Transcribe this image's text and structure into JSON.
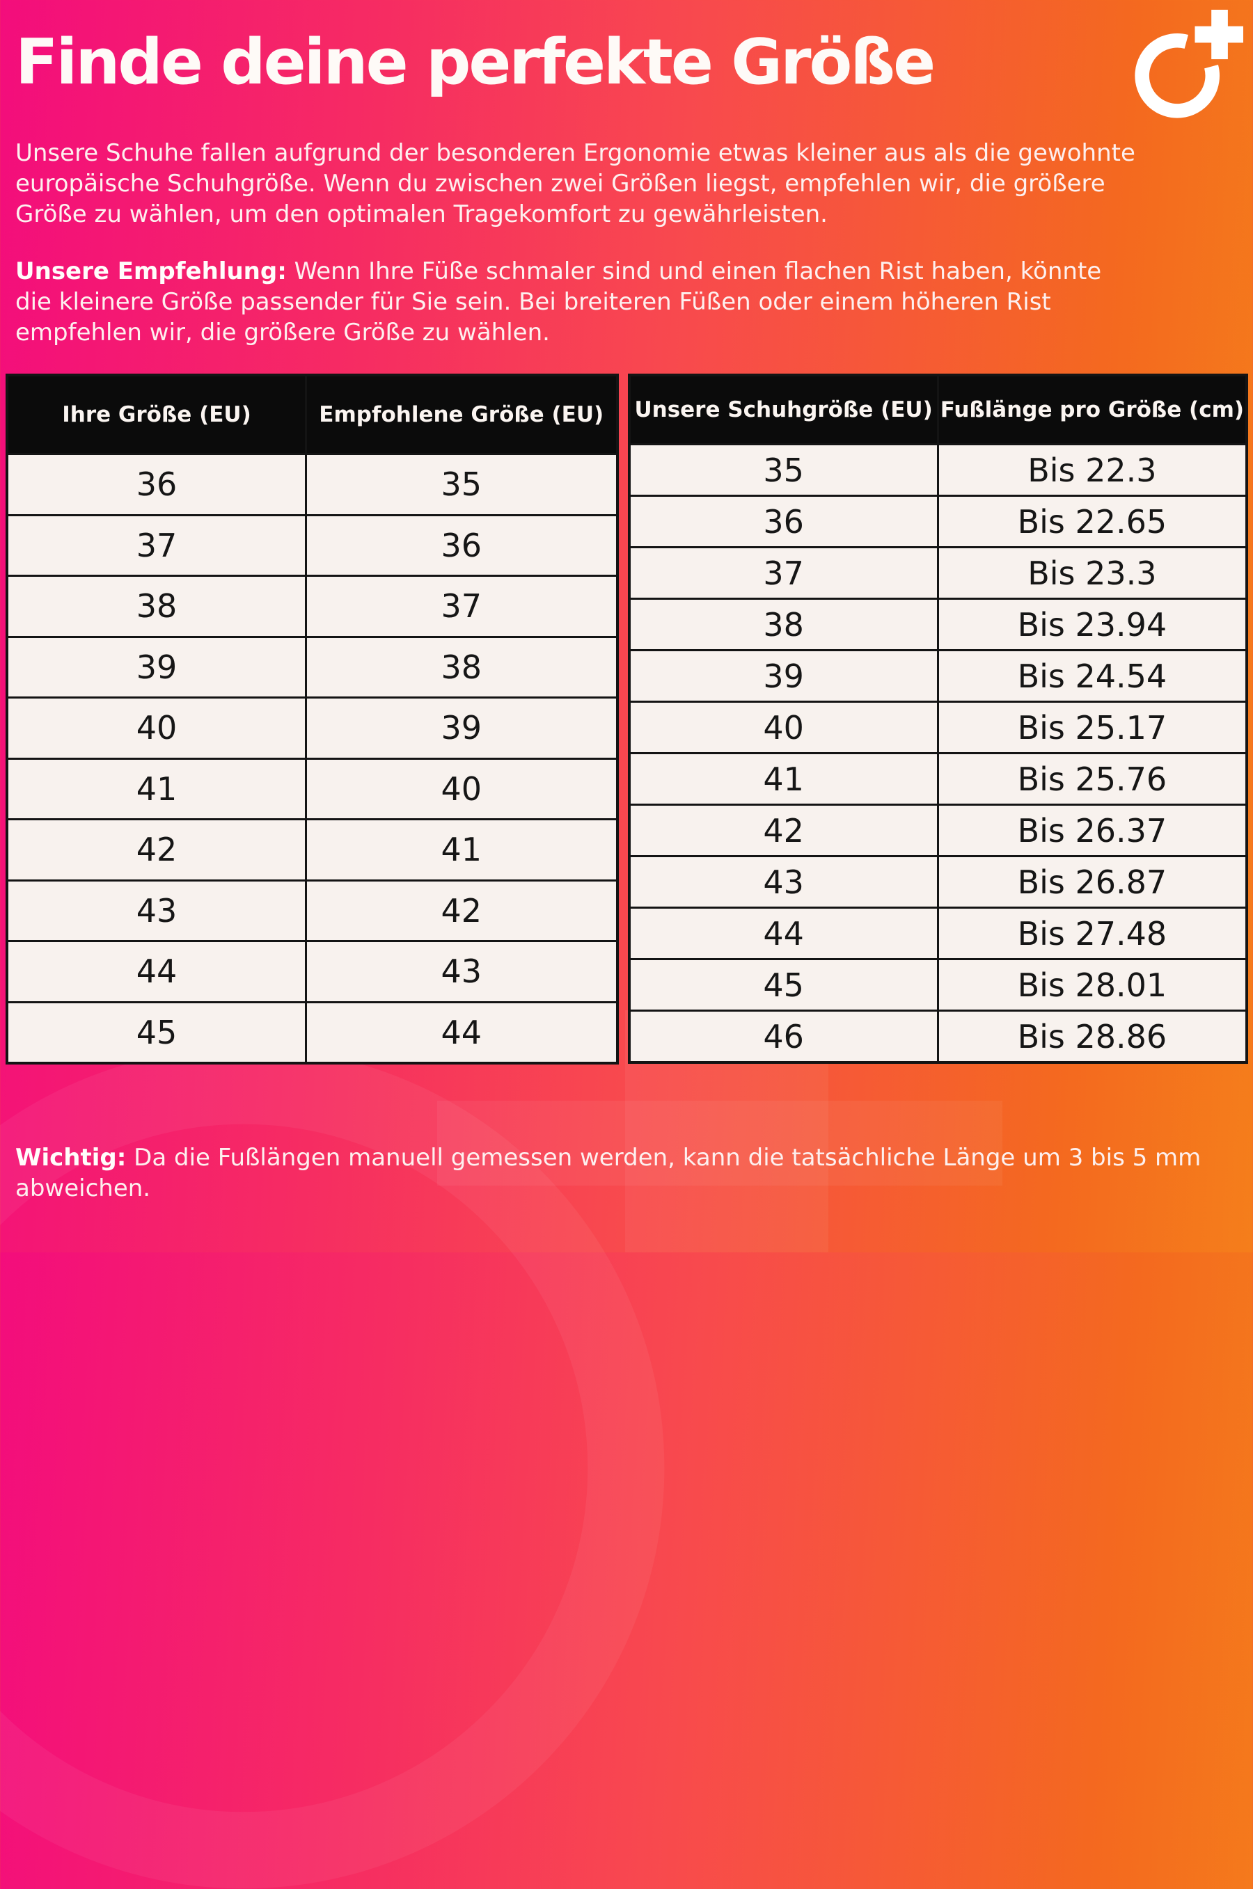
{
  "page": {
    "title": "Finde deine perfekte Größe",
    "intro": "Unsere Schuhe fallen aufgrund der besonderen Ergonomie etwas kleiner aus als die gewohnte europäische Schuhgröße. Wenn du zwischen zwei Größen liegst, empfehlen wir, die größere Größe zu wählen, um den optimalen Tragekomfort zu gewährleisten.",
    "recommendation_label": "Unsere Empfehlung:",
    "recommendation_text": " Wenn Ihre Füße schmaler sind und einen flachen Rist haben, könnte die kleinere Größe passender für Sie sein. Bei breiteren Füßen oder einem höheren Rist empfehlen wir, die größere Größe zu wählen.",
    "note_label": "Wichtig:",
    "note_text": " Da die Fußlängen manuell gemessen werden, kann die tatsächliche Länge um 3 bis 5 mm abweichen."
  },
  "size_table": {
    "headers": [
      "Ihre Größe (EU)",
      "Empfohlene Größe (EU)"
    ],
    "rows": [
      [
        "36",
        "35"
      ],
      [
        "37",
        "36"
      ],
      [
        "38",
        "37"
      ],
      [
        "39",
        "38"
      ],
      [
        "40",
        "39"
      ],
      [
        "41",
        "40"
      ],
      [
        "42",
        "41"
      ],
      [
        "43",
        "42"
      ],
      [
        "44",
        "43"
      ],
      [
        "45",
        "44"
      ]
    ]
  },
  "length_table": {
    "headers": [
      "Unsere Schuhgröße (EU)",
      "Fußlänge pro Größe (cm)"
    ],
    "rows": [
      [
        "35",
        "Bis 22.3"
      ],
      [
        "36",
        "Bis 22.65"
      ],
      [
        "37",
        "Bis 23.3"
      ],
      [
        "38",
        "Bis 23.94"
      ],
      [
        "39",
        "Bis 24.54"
      ],
      [
        "40",
        "Bis 25.17"
      ],
      [
        "41",
        "Bis 25.76"
      ],
      [
        "42",
        "Bis 26.37"
      ],
      [
        "43",
        "Bis 26.87"
      ],
      [
        "44",
        "Bis 27.48"
      ],
      [
        "45",
        "Bis 28.01"
      ],
      [
        "46",
        "Bis 28.86"
      ]
    ]
  },
  "colors": {
    "gradient_start": "#f30d7c",
    "gradient_mid": "#f8494e",
    "gradient_end": "#f57e1b",
    "table_header_bg": "#0b0b0b",
    "table_cell_bg": "#f8f2ee",
    "table_border": "#141414",
    "text_light": "#fdf0ef"
  },
  "icons": {
    "brand_logo": "circle-plus-logo"
  }
}
